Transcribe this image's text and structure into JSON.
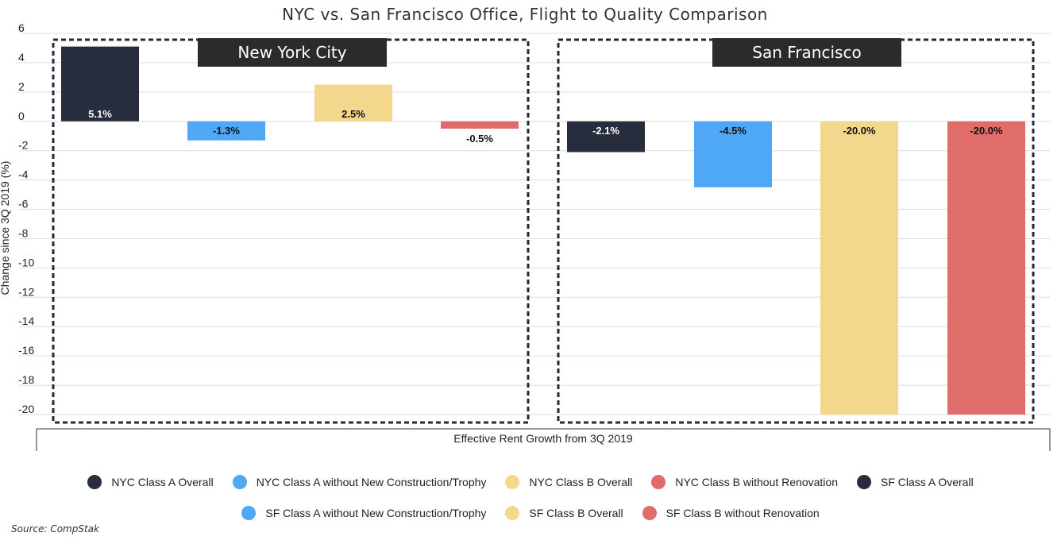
{
  "chart_data": {
    "type": "bar",
    "title": "NYC vs. San Francisco Office, Flight to Quality Comparison",
    "xlabel": "Effective Rent Growth from 3Q 2019",
    "ylabel": "Change since 3Q 2019 (%)",
    "ylim": [
      -20,
      6
    ],
    "yticks": [
      6,
      4,
      2,
      0,
      -2,
      -4,
      -6,
      -8,
      -10,
      -12,
      -14,
      -16,
      -18,
      -20
    ],
    "grid": true,
    "legend_position": "bottom",
    "panels": [
      {
        "name": "New York City",
        "bars": [
          {
            "series": "NYC Class A Overall",
            "value": 5.1,
            "label": "5.1%",
            "color": "#272d3d"
          },
          {
            "series": "NYC Class A without New Construction/Trophy",
            "value": -1.3,
            "label": "-1.3%",
            "color": "#4ea8f5"
          },
          {
            "series": "NYC Class B Overall",
            "value": 2.5,
            "label": "2.5%",
            "color": "#f3d78c"
          },
          {
            "series": "NYC Class B without Renovation",
            "value": -0.5,
            "label": "-0.5%",
            "color": "#e06d6a"
          }
        ]
      },
      {
        "name": "San Francisco",
        "bars": [
          {
            "series": "SF Class A Overall",
            "value": -2.1,
            "label": "-2.1%",
            "color": "#272d3d"
          },
          {
            "series": "SF Class A without New Construction/Trophy",
            "value": -4.5,
            "label": "-4.5%",
            "color": "#4ea8f5"
          },
          {
            "series": "SF Class B Overall",
            "value": -20.0,
            "label": "-20.0%",
            "color": "#f3d78c"
          },
          {
            "series": "SF Class B without Renovation",
            "value": -20.0,
            "label": "-20.0%",
            "color": "#e06d6a"
          }
        ]
      }
    ],
    "legend_rows": [
      [
        {
          "name": "NYC Class A Overall",
          "color": "#272d3d"
        },
        {
          "name": "NYC Class A without New Construction/Trophy",
          "color": "#4ea8f5"
        },
        {
          "name": "NYC Class B Overall",
          "color": "#f3d78c"
        },
        {
          "name": "NYC Class B without Renovation",
          "color": "#e06d6a"
        },
        {
          "name": "SF Class A Overall",
          "color": "#272d3d"
        }
      ],
      [
        {
          "name": "SF Class A without New Construction/Trophy",
          "color": "#4ea8f5"
        },
        {
          "name": "SF Class B Overall",
          "color": "#f3d78c"
        },
        {
          "name": "SF Class B without Renovation",
          "color": "#e06d6a"
        }
      ]
    ],
    "source": "Source: CompStak"
  }
}
